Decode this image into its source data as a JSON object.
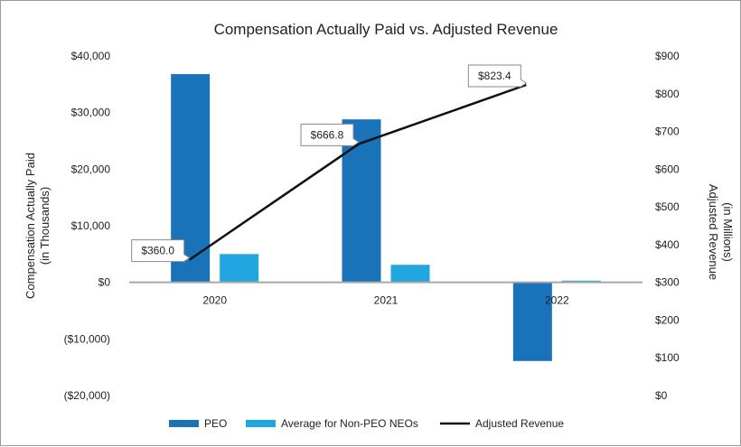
{
  "chart_data": {
    "type": "bar",
    "title": "Compensation Actually Paid vs. Adjusted Revenue",
    "categories": [
      "2020",
      "2021",
      "2022"
    ],
    "ylabel_left_line1": "Compensation Actually Paid",
    "ylabel_left_line2": "(in Thousands)",
    "ylabel_right_line1": "Adjusted Revenue",
    "ylabel_right_line2": "(in Millions)",
    "ylim_left": [
      -20000,
      40000
    ],
    "ylim_right": [
      0,
      900
    ],
    "left_ticks": [
      {
        "value": 40000,
        "label": "$40,000"
      },
      {
        "value": 30000,
        "label": "$30,000"
      },
      {
        "value": 20000,
        "label": "$20,000"
      },
      {
        "value": 10000,
        "label": "$10,000"
      },
      {
        "value": 0,
        "label": "$0"
      },
      {
        "value": -10000,
        "label": "($10,000)"
      },
      {
        "value": -20000,
        "label": "($20,000)"
      }
    ],
    "right_ticks": [
      {
        "value": 900,
        "label": "$900"
      },
      {
        "value": 800,
        "label": "$800"
      },
      {
        "value": 700,
        "label": "$700"
      },
      {
        "value": 600,
        "label": "$600"
      },
      {
        "value": 500,
        "label": "$500"
      },
      {
        "value": 400,
        "label": "$400"
      },
      {
        "value": 300,
        "label": "$300"
      },
      {
        "value": 200,
        "label": "$200"
      },
      {
        "value": 100,
        "label": "$100"
      },
      {
        "value": 0,
        "label": "$0"
      }
    ],
    "series": [
      {
        "name": "PEO",
        "type": "bar",
        "axis": "left",
        "color": "#1a72b8",
        "values": [
          36800,
          28800,
          -13900
        ]
      },
      {
        "name": "Average for Non-PEO NEOs",
        "type": "bar",
        "axis": "left",
        "color": "#22a6df",
        "values": [
          5000,
          3100,
          300
        ]
      },
      {
        "name": "Adjusted Revenue",
        "type": "line",
        "axis": "right",
        "color": "#111111",
        "values": [
          360.0,
          666.8,
          823.4
        ],
        "labels": [
          "$360.0",
          "$666.8",
          "$823.4"
        ]
      }
    ],
    "legend_position": "bottom",
    "grid": false
  }
}
